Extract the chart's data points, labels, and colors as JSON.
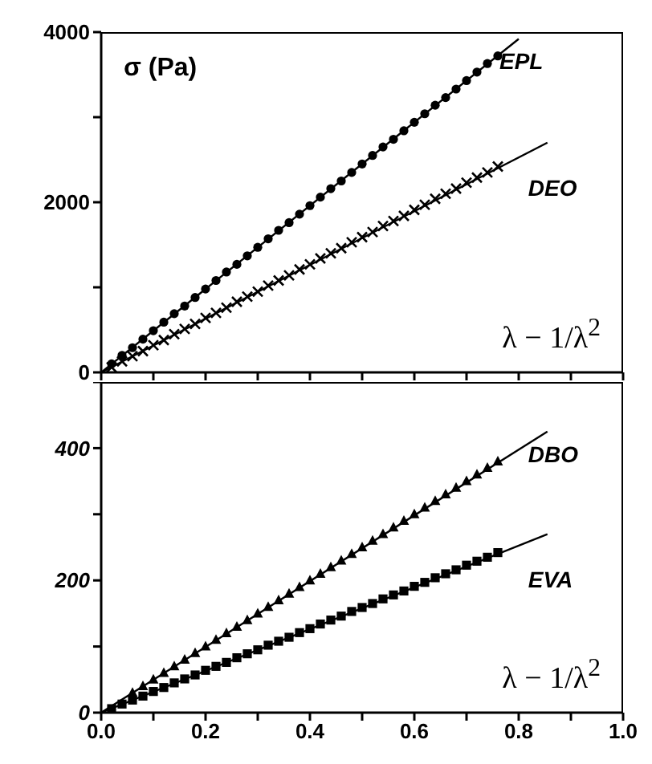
{
  "chart_data": [
    {
      "type": "scatter",
      "ylabel": "σ (Pa)",
      "xlabel": "λ − 1/λ$^{2}$",
      "tick_labels": "y",
      "x": [
        0.02,
        0.04,
        0.06,
        0.08,
        0.1,
        0.12,
        0.14,
        0.16,
        0.18,
        0.2,
        0.22,
        0.24,
        0.26,
        0.28,
        0.3,
        0.32,
        0.34,
        0.36,
        0.38,
        0.4,
        0.42,
        0.44,
        0.46,
        0.48,
        0.5,
        0.52,
        0.54,
        0.56,
        0.58,
        0.6,
        0.62,
        0.64,
        0.66,
        0.68,
        0.7,
        0.72,
        0.74,
        0.76
      ],
      "series": [
        {
          "name": "EPL",
          "color": "#000000",
          "marker": "circle",
          "values": [
            100,
            200,
            290,
            390,
            490,
            590,
            690,
            780,
            880,
            980,
            1080,
            1180,
            1270,
            1370,
            1470,
            1570,
            1670,
            1760,
            1860,
            1960,
            2060,
            2160,
            2250,
            2350,
            2450,
            2550,
            2650,
            2740,
            2840,
            2940,
            3040,
            3140,
            3230,
            3330,
            3430,
            3530,
            3630,
            3720
          ]
        },
        {
          "name": "DEO",
          "color": "#000000",
          "marker": "cross",
          "values": [
            60,
            130,
            190,
            250,
            320,
            380,
            450,
            510,
            570,
            640,
            700,
            760,
            830,
            890,
            950,
            1020,
            1080,
            1140,
            1210,
            1270,
            1340,
            1400,
            1460,
            1530,
            1590,
            1650,
            1720,
            1780,
            1840,
            1910,
            1970,
            2040,
            2100,
            2160,
            2230,
            2290,
            2350,
            2420
          ]
        },
        {
          "type": "line",
          "color": "#000000",
          "marker": "none",
          "x": [
            0,
            0.8
          ],
          "values": [
            0,
            3920
          ]
        },
        {
          "type": "line",
          "color": "#000000",
          "marker": "none",
          "x": [
            0,
            0.855
          ],
          "values": [
            0,
            2700
          ]
        }
      ],
      "xlim": [
        0,
        1.0
      ],
      "xticks": [
        {
          "value": 0,
          "label": null
        },
        {
          "value": 0.1,
          "label": null
        },
        {
          "value": 0.2,
          "label": null
        },
        {
          "value": 0.3,
          "label": null
        },
        {
          "value": 0.4,
          "label": null
        },
        {
          "value": 0.5,
          "label": null
        },
        {
          "value": 0.6,
          "label": null
        },
        {
          "value": 0.7,
          "label": null
        },
        {
          "value": 0.8,
          "label": null
        },
        {
          "value": 0.9,
          "label": null
        },
        {
          "value": 1.0,
          "label": null
        }
      ],
      "ylim": [
        0,
        4000
      ],
      "yticks": [
        0,
        {
          "value": 1000,
          "label": null
        },
        2000,
        {
          "value": 3000,
          "label": null
        },
        4000
      ],
      "grid": false,
      "legend": false
    },
    {
      "type": "scatter",
      "xlabel": "λ − 1/λ$^{2}$",
      "x": [
        0.02,
        0.04,
        0.06,
        0.08,
        0.1,
        0.12,
        0.14,
        0.16,
        0.18,
        0.2,
        0.22,
        0.24,
        0.26,
        0.28,
        0.3,
        0.32,
        0.34,
        0.36,
        0.38,
        0.4,
        0.42,
        0.44,
        0.46,
        0.48,
        0.5,
        0.52,
        0.54,
        0.56,
        0.58,
        0.6,
        0.62,
        0.64,
        0.66,
        0.68,
        0.7,
        0.72,
        0.74,
        0.76
      ],
      "series": [
        {
          "name": "DBO",
          "color": "#000000",
          "marker": "triangle",
          "values": [
            null,
            null,
            30,
            40,
            50,
            60,
            70,
            80,
            90,
            100,
            110,
            120,
            130,
            140,
            150,
            160,
            170,
            180,
            190,
            200,
            210,
            220,
            230,
            240,
            250,
            260,
            270,
            280,
            290,
            300,
            310,
            320,
            330,
            340,
            350,
            360,
            370,
            380
          ]
        },
        {
          "name": "EVA",
          "color": "#000000",
          "marker": "square",
          "values": [
            6,
            13,
            19,
            25,
            32,
            38,
            45,
            51,
            57,
            64,
            70,
            76,
            83,
            89,
            95,
            102,
            108,
            114,
            121,
            127,
            134,
            140,
            146,
            153,
            159,
            165,
            172,
            178,
            184,
            191,
            197,
            204,
            210,
            216,
            223,
            229,
            235,
            242
          ]
        },
        {
          "type": "line",
          "color": "#000000",
          "marker": "none",
          "x": [
            0,
            0.855
          ],
          "values": [
            0,
            425
          ]
        },
        {
          "type": "line",
          "color": "#000000",
          "marker": "none",
          "x": [
            0,
            0.855
          ],
          "values": [
            0,
            270
          ]
        }
      ],
      "xlim": [
        0,
        1.0
      ],
      "xticks": [
        {
          "value": 0,
          "label": "0.0"
        },
        {
          "value": 0.1,
          "label": null
        },
        {
          "value": 0.2,
          "label": "0.2"
        },
        {
          "value": 0.3,
          "label": null
        },
        {
          "value": 0.4,
          "label": "0.4"
        },
        {
          "value": 0.5,
          "label": null
        },
        {
          "value": 0.6,
          "label": "0.6"
        },
        {
          "value": 0.7,
          "label": null
        },
        {
          "value": 0.8,
          "label": "0.8"
        },
        {
          "value": 0.9,
          "label": null
        },
        {
          "value": 1.0,
          "label": "1.0"
        }
      ],
      "ylim": [
        0,
        500
      ],
      "yticks": [
        0,
        {
          "value": 100,
          "label": null
        },
        200,
        {
          "value": 300,
          "label": null
        },
        400,
        {
          "value": 500,
          "label": null
        }
      ],
      "grid": false,
      "legend": false
    }
  ]
}
